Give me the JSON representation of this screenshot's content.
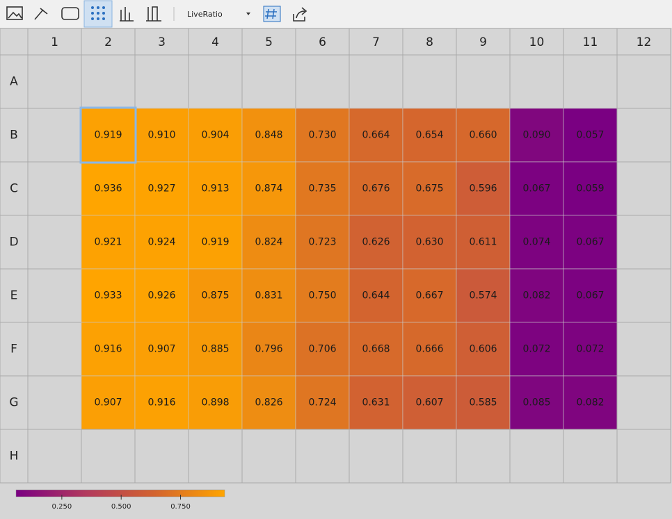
{
  "toolbar": {
    "dropdown": "LiveRatio"
  },
  "chart_data": {
    "type": "heatmap",
    "categories": [
      "1",
      "2",
      "3",
      "4",
      "5",
      "6",
      "7",
      "8",
      "9",
      "10",
      "11",
      "12"
    ],
    "rows": [
      "A",
      "B",
      "C",
      "D",
      "E",
      "F",
      "G",
      "H"
    ],
    "values": [
      [
        null,
        null,
        null,
        null,
        null,
        null,
        null,
        null,
        null,
        null,
        null,
        null
      ],
      [
        null,
        0.919,
        0.91,
        0.904,
        0.848,
        0.73,
        0.664,
        0.654,
        0.66,
        0.09,
        0.057,
        null
      ],
      [
        null,
        0.936,
        0.927,
        0.913,
        0.874,
        0.735,
        0.676,
        0.675,
        0.596,
        0.067,
        0.059,
        null
      ],
      [
        null,
        0.921,
        0.924,
        0.919,
        0.824,
        0.723,
        0.626,
        0.63,
        0.611,
        0.074,
        0.067,
        null
      ],
      [
        null,
        0.933,
        0.926,
        0.875,
        0.831,
        0.75,
        0.644,
        0.667,
        0.574,
        0.082,
        0.067,
        null
      ],
      [
        null,
        0.916,
        0.907,
        0.885,
        0.796,
        0.706,
        0.668,
        0.666,
        0.606,
        0.072,
        0.072,
        null
      ],
      [
        null,
        0.907,
        0.916,
        0.898,
        0.826,
        0.724,
        0.631,
        0.607,
        0.585,
        0.085,
        0.082,
        null
      ],
      [
        null,
        null,
        null,
        null,
        null,
        null,
        null,
        null,
        null,
        null,
        null,
        null
      ]
    ],
    "value_labels": [
      [
        null,
        null,
        null,
        null,
        null,
        null,
        null,
        null,
        null,
        null,
        null,
        null
      ],
      [
        null,
        "0.919",
        "0.910",
        "0.904",
        "0.848",
        "0.730",
        "0.664",
        "0.654",
        "0.660",
        "0.090",
        "0.057",
        null
      ],
      [
        null,
        "0.936",
        "0.927",
        "0.913",
        "0.874",
        "0.735",
        "0.676",
        "0.675",
        "0.596",
        "0.067",
        "0.059",
        null
      ],
      [
        null,
        "0.921",
        "0.924",
        "0.919",
        "0.824",
        "0.723",
        "0.626",
        "0.630",
        "0.611",
        "0.074",
        "0.067",
        null
      ],
      [
        null,
        "0.933",
        "0.926",
        "0.875",
        "0.831",
        "0.750",
        "0.644",
        "0.667",
        "0.574",
        "0.082",
        "0.067",
        null
      ],
      [
        null,
        "0.916",
        "0.907",
        "0.885",
        "0.796",
        "0.706",
        "0.668",
        "0.666",
        "0.606",
        "0.072",
        "0.072",
        null
      ],
      [
        null,
        "0.907",
        "0.916",
        "0.898",
        "0.826",
        "0.724",
        "0.631",
        "0.607",
        "0.585",
        "0.085",
        "0.082",
        null
      ],
      [
        null,
        null,
        null,
        null,
        null,
        null,
        null,
        null,
        null,
        null,
        null,
        null
      ]
    ],
    "colors": [
      "#7a0082",
      "#b23a5e",
      "#d3642f",
      "#ffa500"
    ],
    "clim": [
      0.057,
      0.936
    ],
    "cticks": [
      {
        "value": 0.25,
        "label": "0.250"
      },
      {
        "value": 0.5,
        "label": "0.500"
      },
      {
        "value": 0.75,
        "label": "0.750"
      }
    ]
  }
}
